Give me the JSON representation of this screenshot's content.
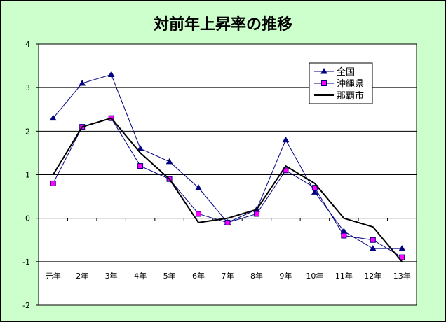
{
  "chart_data": {
    "type": "line",
    "title": "対前年上昇率の推移",
    "categories": [
      "元年",
      "2年",
      "3年",
      "4年",
      "5年",
      "6年",
      "7年",
      "8年",
      "9年",
      "10年",
      "11年",
      "12年",
      "13年"
    ],
    "ylim": [
      -2,
      4
    ],
    "yticks": [
      "-2",
      "-1",
      "0",
      "1",
      "2",
      "3",
      "4"
    ],
    "grid": true,
    "legend_position": "top-right",
    "series": [
      {
        "name": "全国",
        "values": [
          2.3,
          3.1,
          3.3,
          1.6,
          1.3,
          0.7,
          -0.1,
          0.2,
          1.8,
          0.6,
          -0.3,
          -0.7,
          -0.7
        ],
        "color": "#000080",
        "marker": "triangle"
      },
      {
        "name": "沖縄県",
        "values": [
          0.8,
          2.1,
          2.3,
          1.2,
          0.9,
          0.1,
          -0.1,
          0.1,
          1.1,
          0.7,
          -0.4,
          -0.5,
          -0.9
        ],
        "color": "#000080",
        "marker": "square",
        "marker_color": "#ff00ff"
      },
      {
        "name": "那覇市",
        "values": [
          1.0,
          2.1,
          2.3,
          1.5,
          0.9,
          -0.1,
          0.0,
          0.2,
          1.2,
          0.8,
          0.0,
          -0.2,
          -1.0
        ],
        "color": "#000000",
        "marker": "none"
      }
    ]
  }
}
